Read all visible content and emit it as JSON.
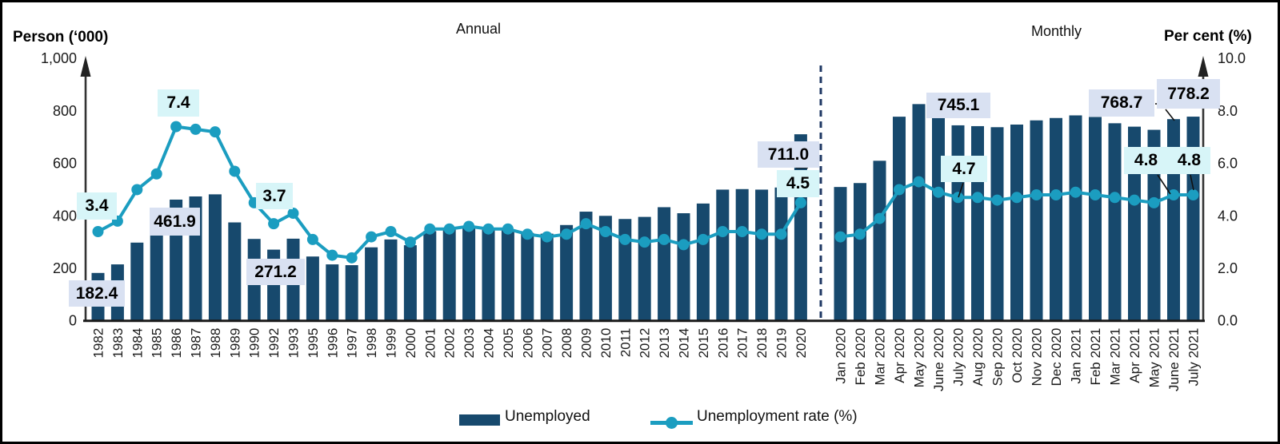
{
  "window": {
    "background": "#ffffff",
    "border_color": "#000000"
  },
  "axes": {
    "left_title": "Person (‘000)",
    "right_title": "Per cent (%)",
    "left_ticks": [
      "1,000",
      "800",
      "600",
      "400",
      "200",
      "0"
    ],
    "right_ticks": [
      "10.0",
      "8.0",
      "6.0",
      "4.0",
      "2.0",
      "0.0"
    ]
  },
  "sections": {
    "annual_label": "Annual",
    "monthly_label": "Monthly"
  },
  "legend": [
    {
      "label": "Unemployed",
      "marker": "bar-swatch"
    },
    {
      "label": "Unemployment rate (%)",
      "marker": "line-dot"
    }
  ],
  "colors": {
    "bar": "#17496D",
    "line": "#1B9DC0",
    "count_label_bg": "#D9E1F2",
    "rate_label_bg": "#D7F5F8",
    "divider": "#1F3864",
    "axis": "#1a1a1a"
  },
  "chart_data": [
    {
      "type": "bar",
      "title": "Annual",
      "categories": [
        "1982",
        "1983",
        "1984",
        "1985",
        "1986",
        "1987",
        "1988",
        "1989",
        "1990",
        "1992",
        "1993",
        "1995",
        "1996",
        "1997",
        "1998",
        "1999",
        "2000",
        "2001",
        "2002",
        "2003",
        "2004",
        "2005",
        "2006",
        "2007",
        "2008",
        "2009",
        "2010",
        "2011",
        "2012",
        "2013",
        "2014",
        "2015",
        "2016",
        "2017",
        "2018",
        "2019",
        "2020"
      ],
      "series": [
        {
          "name": "Unemployed",
          "type": "bar",
          "axis": "left",
          "unit": "'000 persons",
          "values": [
            182.4,
            215,
            298,
            330,
            461.9,
            474,
            482,
            375,
            312,
            271.2,
            313,
            245,
            215,
            212,
            280,
            310,
            288,
            342,
            348,
            355,
            350,
            348,
            335,
            332,
            365,
            416,
            400,
            388,
            396,
            433,
            410,
            447,
            500,
            502,
            500,
            508,
            711.0
          ]
        },
        {
          "name": "Unemployment rate (%)",
          "type": "line",
          "axis": "right",
          "unit": "%",
          "values": [
            3.4,
            3.8,
            5.0,
            5.6,
            7.4,
            7.3,
            7.2,
            5.7,
            4.5,
            3.7,
            4.1,
            3.1,
            2.5,
            2.4,
            3.2,
            3.4,
            3.0,
            3.5,
            3.5,
            3.6,
            3.5,
            3.5,
            3.3,
            3.2,
            3.3,
            3.7,
            3.4,
            3.1,
            3.0,
            3.1,
            2.9,
            3.1,
            3.4,
            3.4,
            3.3,
            3.3,
            4.5
          ]
        }
      ],
      "y_left": {
        "label": "Person (‘000)",
        "range": [
          0,
          1000
        ]
      },
      "y_right": {
        "label": "Per cent (%)",
        "range": [
          0,
          10
        ]
      },
      "grid": false,
      "legend_position": "bottom"
    },
    {
      "type": "bar",
      "title": "Monthly",
      "categories": [
        "Jan 2020",
        "Feb 2020",
        "Mar 2020",
        "Apr 2020",
        "May 2020",
        "June 2020",
        "July 2020",
        "Aug 2020",
        "Sep 2020",
        "Oct 2020",
        "Nov 2020",
        "Dec 2020",
        "Jan 2021",
        "Feb 2021",
        "Mar 2021",
        "Apr 2021",
        "May 2021",
        "June 2021",
        "July 2021"
      ],
      "series": [
        {
          "name": "Unemployed",
          "type": "bar",
          "axis": "left",
          "unit": "'000 persons",
          "values": [
            510,
            525,
            610,
            778,
            826,
            773,
            745.1,
            742,
            738,
            748,
            764,
            773,
            783,
            777,
            753,
            740,
            728,
            768.7,
            778.2
          ]
        },
        {
          "name": "Unemployment rate (%)",
          "type": "line",
          "axis": "right",
          "unit": "%",
          "values": [
            3.2,
            3.3,
            3.9,
            5.0,
            5.3,
            4.9,
            4.7,
            4.7,
            4.6,
            4.7,
            4.8,
            4.8,
            4.9,
            4.8,
            4.7,
            4.6,
            4.5,
            4.8,
            4.8
          ]
        }
      ],
      "y_left": {
        "label": "Person (‘000)",
        "range": [
          0,
          1000
        ]
      },
      "y_right": {
        "label": "Per cent (%)",
        "range": [
          0,
          10
        ]
      },
      "grid": false,
      "legend_position": "bottom"
    }
  ],
  "annotations": [
    {
      "text": "3.4",
      "series": "Unemployment rate (%)",
      "category": "1982"
    },
    {
      "text": "182.4",
      "series": "Unemployed",
      "category": "1982"
    },
    {
      "text": "7.4",
      "series": "Unemployment rate (%)",
      "category": "1986"
    },
    {
      "text": "461.9",
      "series": "Unemployed",
      "category": "1986"
    },
    {
      "text": "3.7",
      "series": "Unemployment rate (%)",
      "category": "1992"
    },
    {
      "text": "271.2",
      "series": "Unemployed",
      "category": "1992"
    },
    {
      "text": "711.0",
      "series": "Unemployed",
      "category": "2020"
    },
    {
      "text": "4.5",
      "series": "Unemployment rate (%)",
      "category": "2020"
    },
    {
      "text": "745.1",
      "series": "Unemployed",
      "category": "July 2020"
    },
    {
      "text": "4.7",
      "series": "Unemployment rate (%)",
      "category": "July 2020"
    },
    {
      "text": "768.7",
      "series": "Unemployed",
      "category": "June 2021"
    },
    {
      "text": "778.2",
      "series": "Unemployed",
      "category": "July 2021"
    },
    {
      "text": "4.8",
      "series": "Unemployment rate (%)",
      "category": "June 2021"
    },
    {
      "text": "4.8",
      "series": "Unemployment rate (%)",
      "category": "July 2021"
    }
  ]
}
